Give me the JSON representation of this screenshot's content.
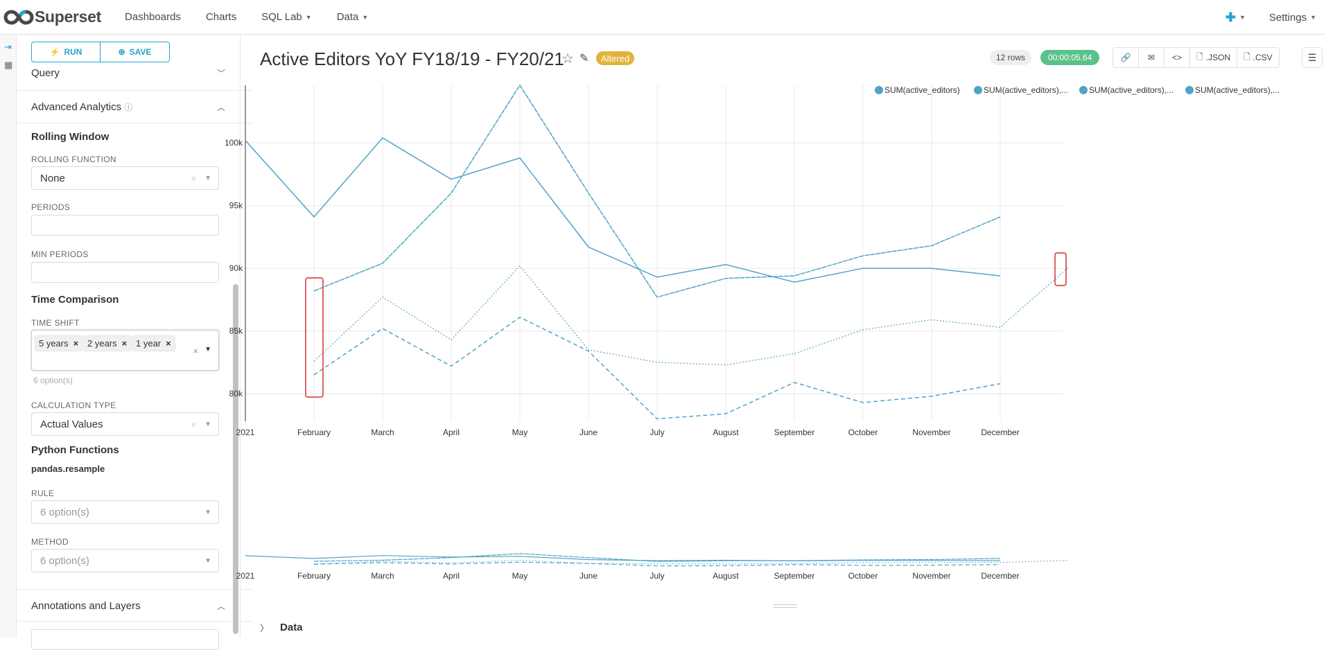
{
  "app": {
    "brand": "Superset",
    "menu": [
      {
        "label": "Dashboards",
        "caret": false
      },
      {
        "label": "Charts",
        "caret": false
      },
      {
        "label": "SQL Lab",
        "caret": true
      },
      {
        "label": "Data",
        "caret": true
      }
    ],
    "settings_label": "Settings",
    "plus_icon": "plus-icon",
    "accent": "#20a7c9"
  },
  "panel": {
    "run_label": "RUN",
    "save_label": "SAVE",
    "query_label": "Query",
    "advanced_label": "Advanced Analytics",
    "rolling_window_title": "Rolling Window",
    "rolling_function_label": "ROLLING FUNCTION",
    "rolling_function_value": "None",
    "periods_label": "PERIODS",
    "min_periods_label": "MIN PERIODS",
    "time_comparison_title": "Time Comparison",
    "time_shift_label": "TIME SHIFT",
    "time_shift_tags": [
      "5 years",
      "2 years",
      "1 year"
    ],
    "time_shift_hint": "6 option(s)",
    "calculation_type_label": "CALCULATION TYPE",
    "calculation_type_value": "Actual Values",
    "python_functions_title": "Python Functions",
    "resample_label": "pandas.resample",
    "rule_label": "RULE",
    "rule_placeholder": "6 option(s)",
    "method_label": "METHOD",
    "method_placeholder": "6 option(s)",
    "annotations_label": "Annotations and Layers"
  },
  "header": {
    "title": "Active Editors YoY FY18/19 - FY20/21",
    "altered_badge": "Altered",
    "rows_badge": "12 rows",
    "time_badge": "00:00:05.64",
    "json_label": ".JSON",
    "csv_label": ".CSV"
  },
  "legend": [
    "SUM(active_editors)",
    "SUM(active_editors),...",
    "SUM(active_editors),...",
    "SUM(active_editors),..."
  ],
  "data_section_label": "Data",
  "chart_data": {
    "type": "line",
    "color": "#4fa3c7",
    "categories": [
      "2021",
      "February",
      "March",
      "April",
      "May",
      "June",
      "July",
      "August",
      "September",
      "October",
      "November",
      "December",
      ""
    ],
    "y_ticks": [
      "100k",
      "95k",
      "90k",
      "85k",
      "80k"
    ],
    "ylim": [
      77800,
      104600
    ],
    "series": [
      {
        "name": "SUM(active_editors)",
        "style": "solid",
        "values": [
          100200,
          94100,
          100400,
          97100,
          98800,
          91700,
          89300,
          90300,
          88900,
          90000,
          90000,
          89400,
          null
        ]
      },
      {
        "name": "SUM(active_editors),...",
        "style": "longdash",
        "values": [
          null,
          88200,
          90400,
          96000,
          104600,
          96000,
          87700,
          89200,
          89400,
          91000,
          91800,
          94100,
          null
        ]
      },
      {
        "name": "SUM(active_editors),...",
        "style": "dot",
        "values": [
          null,
          82600,
          87700,
          84300,
          90200,
          83500,
          82500,
          82300,
          83200,
          85100,
          85900,
          85300,
          90100
        ]
      },
      {
        "name": "SUM(active_editors),...",
        "style": "dash",
        "values": [
          null,
          81500,
          85200,
          82200,
          86100,
          83400,
          78000,
          78400,
          80900,
          79300,
          79800,
          80800,
          null
        ]
      }
    ]
  }
}
